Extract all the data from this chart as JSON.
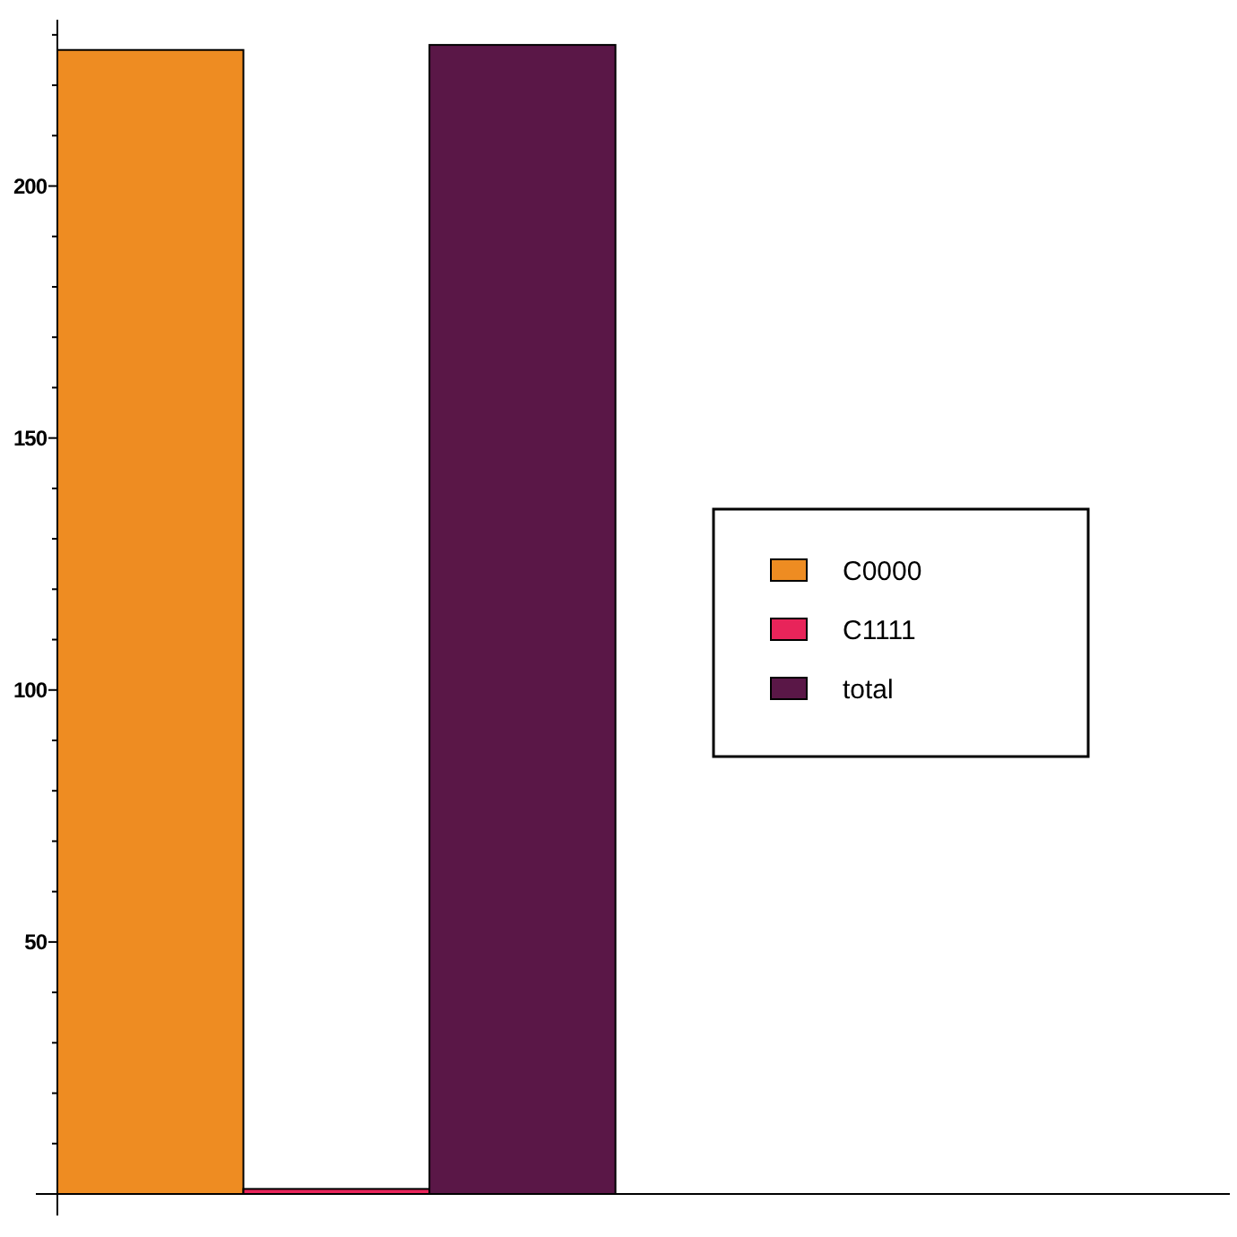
{
  "chart_data": {
    "type": "bar",
    "categories": [
      null
    ],
    "series": [
      {
        "name": "C0000",
        "color": "#ee8c22",
        "values": [
          227
        ]
      },
      {
        "name": "C1111",
        "color": "#e8245a",
        "values": [
          1
        ]
      },
      {
        "name": "total",
        "color": "#5a1747",
        "values": [
          228
        ]
      }
    ],
    "ylim": [
      0,
      233
    ],
    "yticks": [
      {
        "value": 10,
        "label": null
      },
      {
        "value": 20,
        "label": null
      },
      {
        "value": 30,
        "label": null
      },
      {
        "value": 40,
        "label": null
      },
      50,
      {
        "value": 60,
        "label": null
      },
      {
        "value": 70,
        "label": null
      },
      {
        "value": 80,
        "label": null
      },
      {
        "value": 90,
        "label": null
      },
      100,
      {
        "value": 110,
        "label": null
      },
      {
        "value": 120,
        "label": null
      },
      {
        "value": 130,
        "label": null
      },
      {
        "value": 140,
        "label": null
      },
      150,
      {
        "value": 160,
        "label": null
      },
      {
        "value": 170,
        "label": null
      },
      {
        "value": 180,
        "label": null
      },
      {
        "value": 190,
        "label": null
      },
      200,
      {
        "value": 210,
        "label": null
      },
      {
        "value": 220,
        "label": null
      },
      {
        "value": 230,
        "label": null
      }
    ],
    "legend": "right",
    "grid": false
  }
}
